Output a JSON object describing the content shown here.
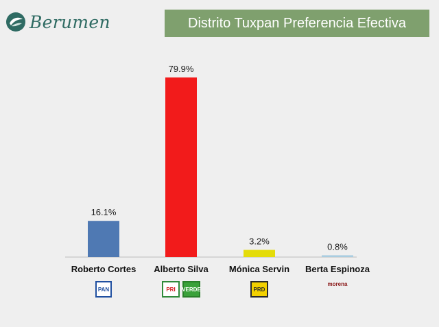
{
  "header": {
    "brand": "Berumen",
    "title": "Distrito Tuxpan Preferencia Efectiva"
  },
  "colors": {
    "brand": "#2f6b63",
    "title_bg": "#7fa06e",
    "background": "#efefef"
  },
  "chart_data": {
    "type": "bar",
    "categories": [
      "Roberto Cortes",
      "Alberto Silva",
      "Mónica Servin",
      "Berta Espinoza"
    ],
    "values": [
      16.1,
      79.9,
      3.2,
      0.8
    ],
    "value_labels": [
      "16.1%",
      "79.9%",
      "3.2%",
      "0.8%"
    ],
    "colors": [
      "#4f79b3",
      "#f21b1b",
      "#e4dc0a",
      "#a9cde0"
    ],
    "ylim": [
      0,
      100
    ],
    "grid": false,
    "legend": "none",
    "title": "Distrito Tuxpan Preferencia Efectiva"
  },
  "parties": [
    {
      "candidate": "Roberto Cortes",
      "logos": [
        {
          "icon": "pan-logo",
          "text": "PAN"
        }
      ]
    },
    {
      "candidate": "Alberto Silva",
      "logos": [
        {
          "icon": "pri-logo",
          "text": "PRI"
        },
        {
          "icon": "verde-logo",
          "text": "VERDE"
        }
      ]
    },
    {
      "candidate": "Mónica Servin",
      "logos": [
        {
          "icon": "prd-logo",
          "text": "PRD"
        }
      ]
    },
    {
      "candidate": "Berta Espinoza",
      "logos": [
        {
          "icon": "morena-logo",
          "text": "morena"
        }
      ]
    }
  ]
}
